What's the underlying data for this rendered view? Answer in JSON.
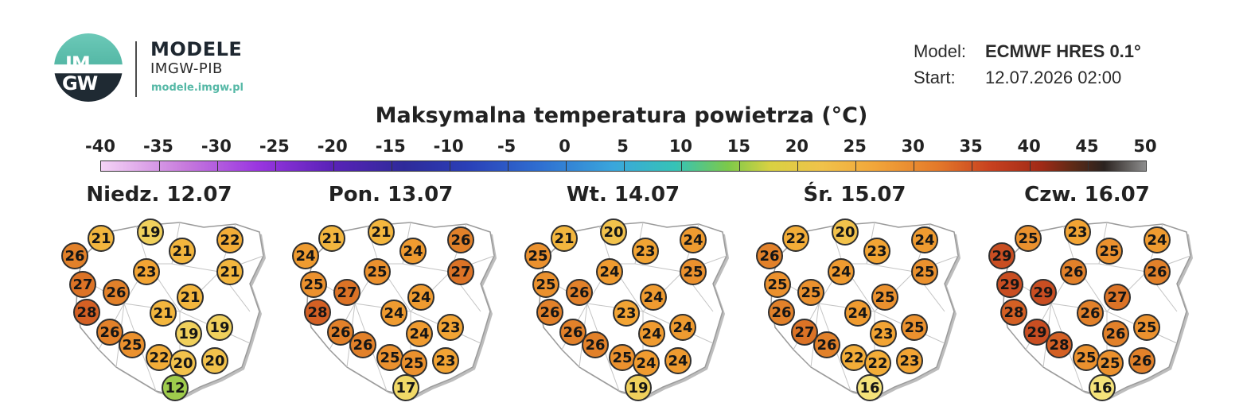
{
  "header": {
    "logo_text_top": "IM",
    "logo_text_bottom": "GW",
    "brand_title": "MODELE",
    "brand_subtitle": "IMGW-PIB",
    "brand_url": "modele.imgw.pl"
  },
  "meta": {
    "model_label": "Model:",
    "model_value": "ECMWF HRES 0.1°",
    "start_label": "Start:",
    "start_value": "12.07.2026 02:00"
  },
  "title": "Maksymalna temperatura powietrza (°C)",
  "scale": {
    "ticks": [
      "-40",
      "-35",
      "-30",
      "-25",
      "-20",
      "-15",
      "-10",
      "-5",
      "0",
      "5",
      "10",
      "15",
      "20",
      "25",
      "30",
      "35",
      "40",
      "45",
      "50"
    ]
  },
  "color_map": {
    "12": "#9fcc4c",
    "16": "#f4e27a",
    "17": "#f1d967",
    "19": "#f0d05c",
    "20": "#f2c24c",
    "21": "#f3b63e",
    "22": "#f3ad38",
    "23": "#f2a434",
    "24": "#ef9b30",
    "25": "#eb912e",
    "26": "#e2812a",
    "27": "#dc7326",
    "28": "#d46024",
    "29": "#c94e22"
  },
  "days": [
    {
      "label": "Niedz. 12.07",
      "values": [
        "21",
        "19",
        "22",
        "26",
        "21",
        "21",
        "23",
        "27",
        "26",
        "21",
        "28",
        "21",
        "26",
        "19",
        "19",
        "25",
        "22",
        "20",
        "20",
        "12"
      ]
    },
    {
      "label": "Pon. 13.07",
      "values": [
        "21",
        "21",
        "26",
        "24",
        "24",
        "27",
        "25",
        "25",
        "27",
        "24",
        "28",
        "24",
        "26",
        "24",
        "23",
        "26",
        "25",
        "25",
        "23",
        "17"
      ]
    },
    {
      "label": "Wt. 14.07",
      "values": [
        "21",
        "20",
        "24",
        "25",
        "23",
        "25",
        "24",
        "25",
        "26",
        "24",
        "26",
        "23",
        "26",
        "24",
        "24",
        "26",
        "25",
        "24",
        "24",
        "19"
      ]
    },
    {
      "label": "Śr. 15.07",
      "values": [
        "22",
        "20",
        "24",
        "26",
        "23",
        "25",
        "24",
        "25",
        "25",
        "25",
        "26",
        "24",
        "27",
        "23",
        "25",
        "26",
        "22",
        "22",
        "23",
        "16"
      ]
    },
    {
      "label": "Czw. 16.07",
      "values": [
        "25",
        "23",
        "24",
        "29",
        "25",
        "26",
        "26",
        "29",
        "29",
        "27",
        "28",
        "26",
        "29",
        "26",
        "25",
        "28",
        "25",
        "25",
        "26",
        "16"
      ]
    }
  ]
}
